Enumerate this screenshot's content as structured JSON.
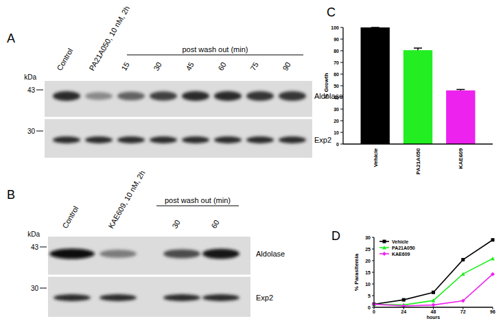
{
  "chart_data": [
    {
      "type": "bar",
      "panel": "C",
      "y_label": "% Growth",
      "categories": [
        "Vehicle",
        "PA21A050",
        "KAE609"
      ],
      "values": [
        100,
        80.5,
        46
      ],
      "errors": [
        0,
        1.8,
        0.8
      ],
      "colors": [
        "#000000",
        "#22ee22",
        "#ee22ee"
      ],
      "ylim": [
        0,
        100
      ],
      "yticks": [
        0,
        10,
        20,
        30,
        40,
        50,
        60,
        70,
        80,
        90,
        100
      ],
      "grid": false
    },
    {
      "type": "line",
      "panel": "D",
      "x_label": "hours",
      "y_label": "% Parasitemia",
      "x": [
        0,
        24,
        48,
        72,
        96
      ],
      "series": [
        {
          "name": "Vehicle",
          "color": "#000000",
          "marker": "square",
          "values": [
            1.3,
            3.2,
            6.4,
            20.4,
            28.9
          ]
        },
        {
          "name": "PA21A050",
          "color": "#22ee22",
          "marker": "triangle",
          "values": [
            1.3,
            1.0,
            2.9,
            14.3,
            20.9
          ]
        },
        {
          "name": "KAE609",
          "color": "#ee22ee",
          "marker": "diamond",
          "values": [
            1.3,
            0.6,
            1.0,
            2.8,
            14.2
          ]
        }
      ],
      "xlim": [
        0,
        96
      ],
      "xticks": [
        0,
        24,
        48,
        72,
        96
      ],
      "ylim": [
        0,
        30
      ],
      "yticks": [
        0,
        5,
        10,
        15,
        20,
        25,
        30
      ],
      "legend": "upper-left",
      "grid": false
    }
  ],
  "blots": [
    {
      "panel": "A",
      "unit": "kDa",
      "markers": [
        43,
        30
      ],
      "proteins": [
        "Aldolase",
        "Exp2"
      ],
      "treatment_lanes": [
        "Control",
        "PA21A050, 10 nM, 2h"
      ],
      "washout_label": "post wash out (min)",
      "washout_lanes": [
        "15",
        "30",
        "45",
        "60",
        "75",
        "90"
      ]
    },
    {
      "panel": "B",
      "unit": "kDa",
      "markers": [
        43,
        30
      ],
      "proteins": [
        "Aldolase",
        "Exp2"
      ],
      "treatment_lanes": [
        "Control",
        "KAE609, 10 nM, 2h"
      ],
      "washout_label": "post wash out (min)",
      "washout_lanes": [
        "30",
        "60"
      ]
    }
  ]
}
